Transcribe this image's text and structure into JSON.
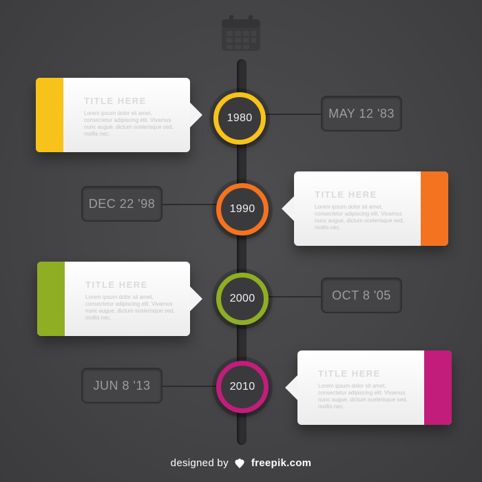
{
  "header": {
    "title": "",
    "subtitle": ""
  },
  "nodes": [
    {
      "year": "1980",
      "color": "#f7c31a"
    },
    {
      "year": "1990",
      "color": "#f47320"
    },
    {
      "year": "2000",
      "color": "#8fae23"
    },
    {
      "year": "2010",
      "color": "#c21d7b"
    }
  ],
  "dates": [
    {
      "label": "MAY 12 '83"
    },
    {
      "label": "DEC 22 '98"
    },
    {
      "label": "OCT 8 '05"
    },
    {
      "label": "JUN 8 '13"
    }
  ],
  "cards": [
    {
      "title": "TITLE HERE",
      "body": "Lorem ipsum dolor sit amet, consectetur adipiscing elit. Vivamus nunc augue, dictum scelerisque sed, mollis nec.",
      "color": "#f7c31a"
    },
    {
      "title": "TITLE HERE",
      "body": "Lorem ipsum dolor sit amet, consectetur adipiscing elit. Vivamus nunc augue, dictum scelerisque sed, mollis nec.",
      "color": "#f47320"
    },
    {
      "title": "TITLE HERE",
      "body": "Lorem ipsum dolor sit amet, consectetur adipiscing elit. Vivamus nunc augue, dictum scelerisque sed, mollis nec.",
      "color": "#8fae23"
    },
    {
      "title": "TITLE HERE",
      "body": "Lorem ipsum dolor sit amet, consectetur adipiscing elit. Vivamus nunc augue, dictum scelerisque sed, mollis nec.",
      "color": "#c21d7b"
    }
  ],
  "footer": {
    "prefix": "designed by",
    "brand": "freepik.com",
    "icon": "freepik-logo-icon"
  }
}
